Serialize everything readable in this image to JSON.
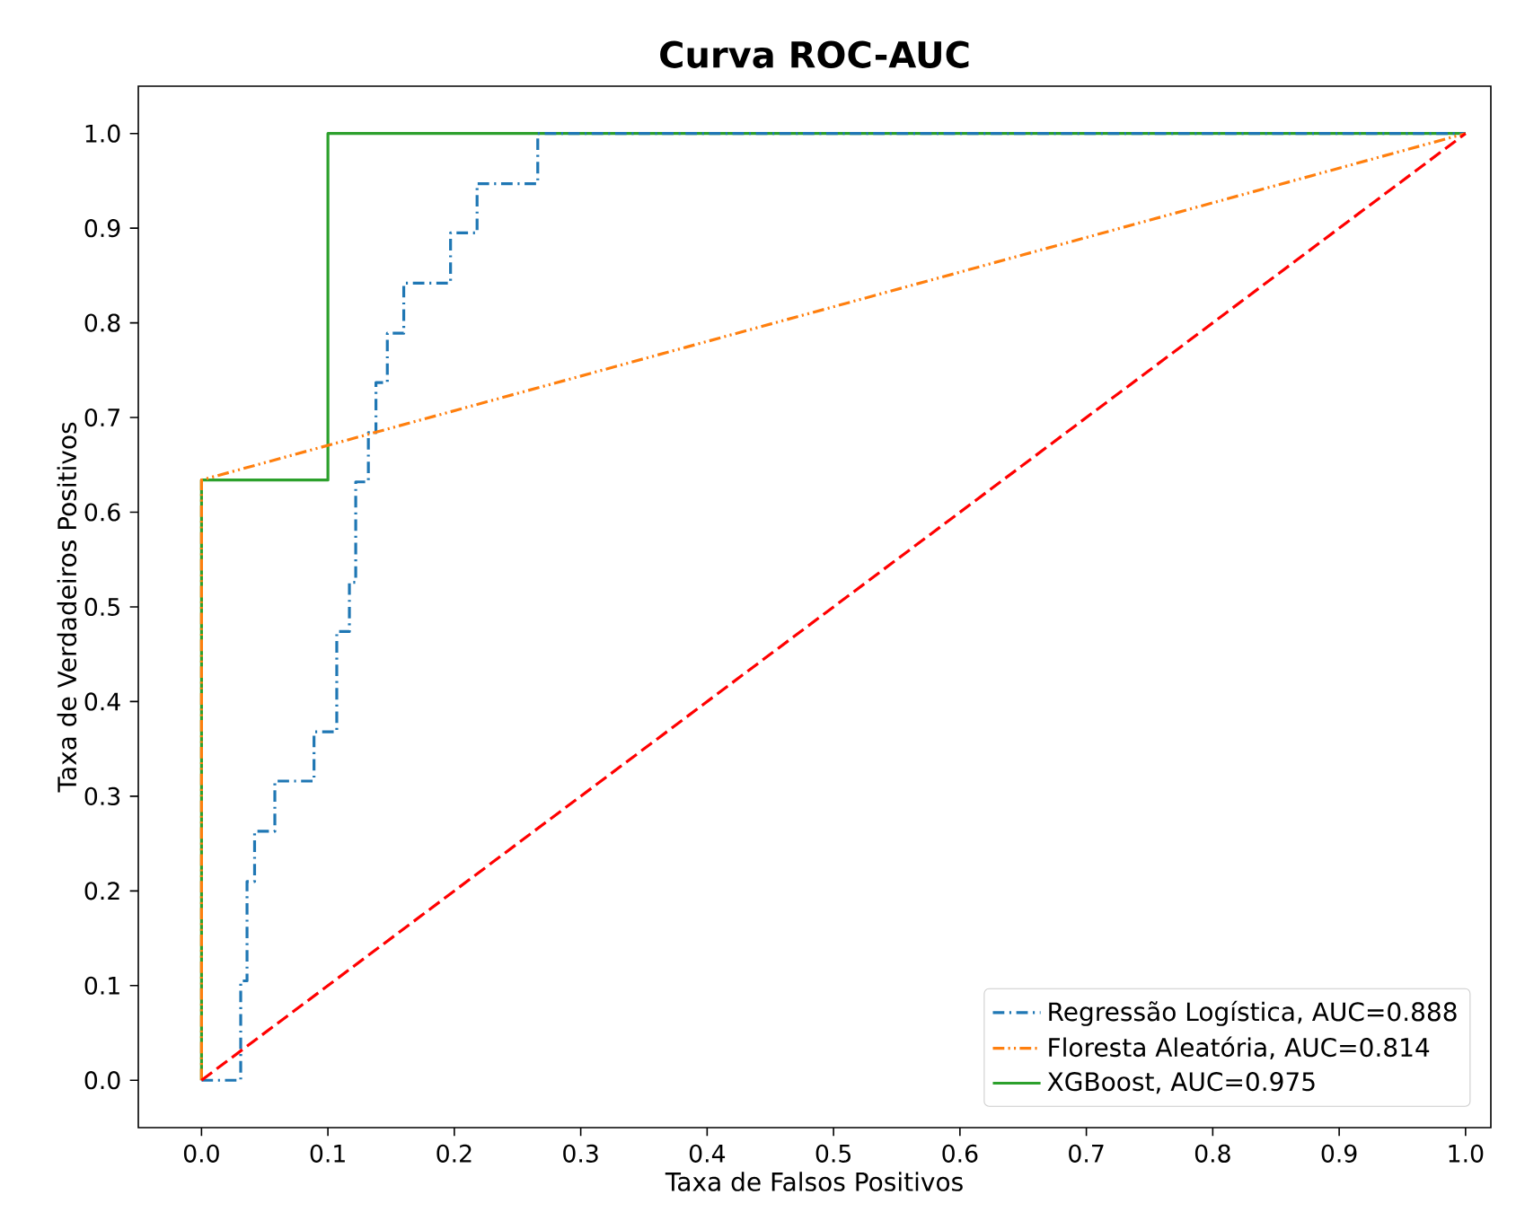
{
  "chart_data": {
    "type": "line",
    "title": "Curva ROC-AUC",
    "xlabel": "Taxa de Falsos Positivos",
    "ylabel": "Taxa de Verdadeiros Positivos",
    "xlim": [
      -0.05,
      1.02
    ],
    "ylim": [
      -0.05,
      1.05
    ],
    "xticks": [
      {
        "value": 0,
        "label": "0.0"
      },
      0.1,
      0.2,
      0.3,
      0.4,
      0.5,
      0.6,
      0.7,
      0.8,
      0.9,
      {
        "value": 1,
        "label": "1.0"
      }
    ],
    "yticks": [
      {
        "value": 0,
        "label": "0.0"
      },
      0.1,
      0.2,
      0.3,
      0.4,
      0.5,
      0.6,
      0.7,
      0.8,
      0.9,
      {
        "value": 1,
        "label": "1.0"
      }
    ],
    "legend": "bottom right",
    "grid": false,
    "marker": "none",
    "series": [
      {
        "name": "Regressão Logística, AUC=0.888",
        "color": "#1f77b4",
        "line_style": "dashdot",
        "x": [
          0,
          0.031,
          0.031,
          0.036,
          0.036,
          0.042,
          0.042,
          0.058,
          0.058,
          0.089,
          0.089,
          0.107,
          0.107,
          0.117,
          0.117,
          0.122,
          0.122,
          0.132,
          0.132,
          0.138,
          0.138,
          0.147,
          0.147,
          0.16,
          0.16,
          0.197,
          0.197,
          0.218,
          0.218,
          0.266,
          0.266,
          1.0
        ],
        "values": [
          0,
          0,
          0.105,
          0.105,
          0.21,
          0.21,
          0.263,
          0.263,
          0.316,
          0.316,
          0.368,
          0.368,
          0.474,
          0.474,
          0.526,
          0.526,
          0.632,
          0.632,
          0.684,
          0.684,
          0.737,
          0.737,
          0.789,
          0.789,
          0.842,
          0.842,
          0.895,
          0.895,
          0.947,
          0.947,
          1.0,
          1.0
        ]
      },
      {
        "name": "Floresta Aleatória, AUC=0.814",
        "color": "#ff7f0e",
        "line_style": "dashdotdotted",
        "x": [
          0,
          0,
          1.0
        ],
        "values": [
          0,
          0.634,
          1.0
        ]
      },
      {
        "name": "XGBoost, AUC=0.975",
        "color": "#2ca02c",
        "line_style": "solid",
        "x": [
          0,
          0,
          0.1,
          0.1,
          1.0
        ],
        "values": [
          0,
          0.634,
          0.634,
          1.0,
          1.0
        ]
      },
      {
        "color": "#ff0000",
        "line_style": "dashed",
        "x": [
          0,
          1.0
        ],
        "values": [
          0,
          1.0
        ]
      }
    ]
  }
}
